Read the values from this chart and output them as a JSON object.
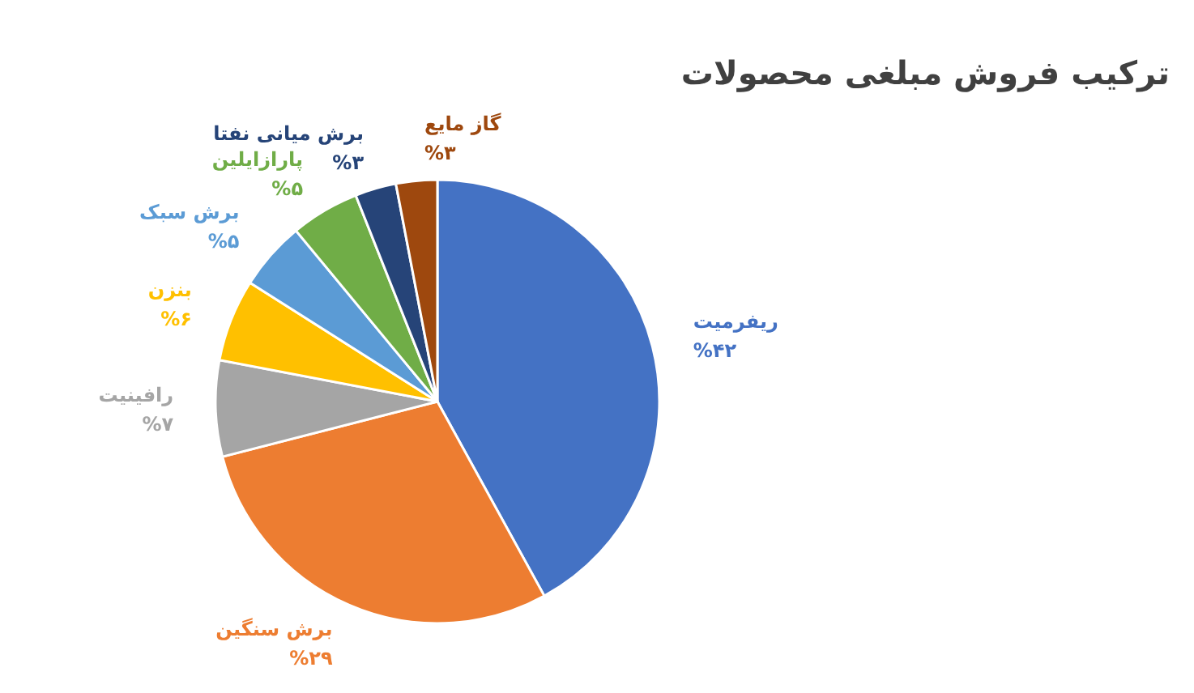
{
  "chart_data": {
    "type": "pie",
    "title": "ترکیب فروش مبلغی محصولات",
    "categories": [
      "ریفرمیت",
      "برش سنگین",
      "رافینیت",
      "بنزن",
      "برش سبک",
      "پارازایلین",
      "برش میانی نفتا",
      "گاز مایع"
    ],
    "values": [
      42,
      29,
      7,
      6,
      5,
      5,
      3,
      3
    ],
    "colors": [
      "#4472c4",
      "#ed7d31",
      "#a5a5a5",
      "#ffc000",
      "#5b9bd5",
      "#70ad47",
      "#264478",
      "#9e480e"
    ],
    "value_labels": [
      "%۴۲",
      "%۲۹",
      "%۷",
      "%۶",
      "%۵",
      "%۵",
      "%۳",
      "%۳"
    ],
    "legend": false
  }
}
